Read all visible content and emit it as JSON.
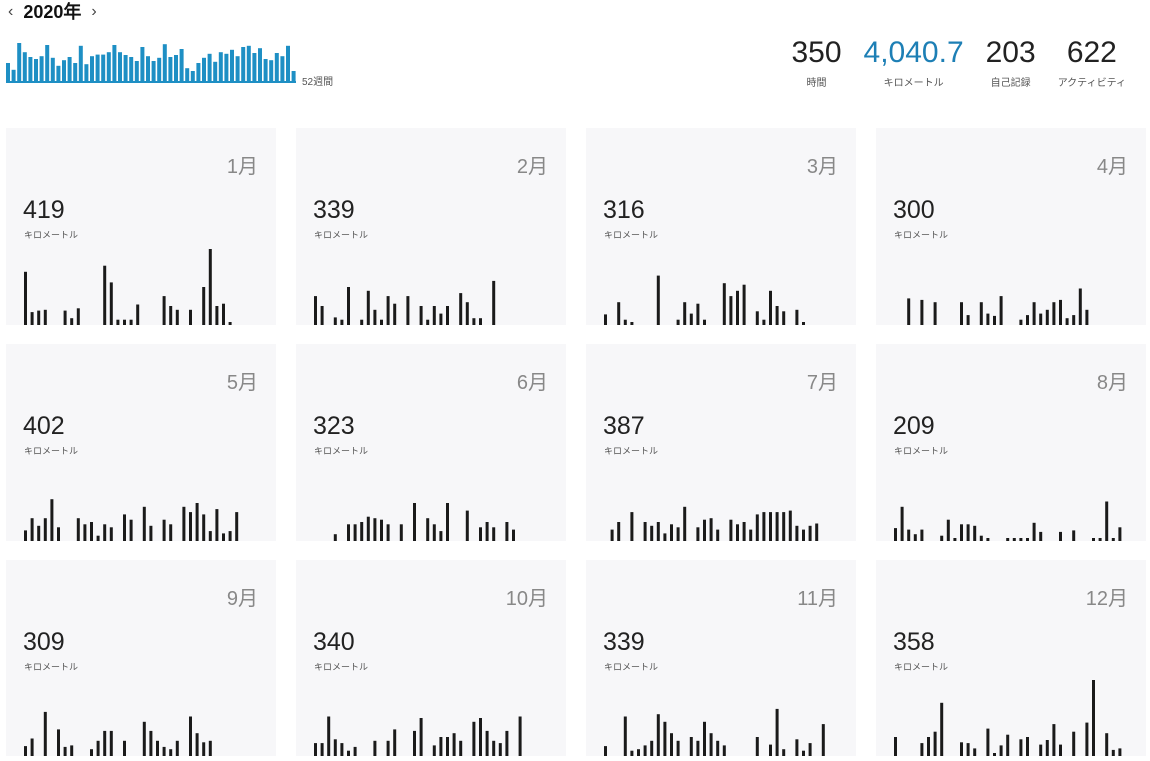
{
  "header": {
    "year_label": "2020年",
    "prev_icon": "chevron-left-icon",
    "next_icon": "chevron-right-icon",
    "weeks_label": "52週間"
  },
  "colors": {
    "accent": "#1d7fb5",
    "weekly_bar": "#1e8fc4",
    "daily_bar": "#1a1a1a",
    "card_bg": "#f7f7f9"
  },
  "weekly_bars": [
    0.45,
    0.28,
    0.95,
    0.72,
    0.6,
    0.55,
    0.62,
    0.9,
    0.58,
    0.38,
    0.52,
    0.6,
    0.45,
    0.88,
    0.42,
    0.62,
    0.66,
    0.66,
    0.72,
    0.9,
    0.72,
    0.65,
    0.6,
    0.5,
    0.85,
    0.62,
    0.5,
    0.58,
    0.92,
    0.6,
    0.65,
    0.8,
    0.32,
    0.25,
    0.45,
    0.58,
    0.68,
    0.48,
    0.72,
    0.68,
    0.78,
    0.62,
    0.85,
    0.88,
    0.7,
    0.82,
    0.55,
    0.52,
    0.7,
    0.62,
    0.88,
    0.25
  ],
  "totals": [
    {
      "value": "350",
      "unit": "時間",
      "accent": false
    },
    {
      "value": "4,040.7",
      "unit": "キロメートル",
      "accent": true
    },
    {
      "value": "203",
      "unit": "自己記録",
      "accent": false
    },
    {
      "value": "622",
      "unit": "アクティビティ",
      "accent": false
    }
  ],
  "months": [
    {
      "label": "1月",
      "distance": "419",
      "unit": "キロメートル",
      "days": [
        0.7,
        0.17,
        0.19,
        0.2,
        0,
        0,
        0.19,
        0.09,
        0.22,
        0,
        0,
        0,
        0.78,
        0.56,
        0.07,
        0.07,
        0.07,
        0.27,
        0,
        0,
        0,
        0.38,
        0.25,
        0.2,
        0,
        0.2,
        0,
        0.5,
        1.0,
        0.25,
        0.28,
        0.04
      ]
    },
    {
      "label": "2月",
      "distance": "339",
      "unit": "キロメートル",
      "days": [
        0.38,
        0.25,
        0,
        0.1,
        0.07,
        0.5,
        0,
        0.07,
        0.45,
        0.2,
        0.07,
        0.38,
        0.28,
        0,
        0.38,
        0,
        0.25,
        0.07,
        0.25,
        0.15,
        0.25,
        0,
        0.42,
        0.3,
        0.09,
        0.09,
        0,
        0.58
      ]
    },
    {
      "label": "3月",
      "distance": "316",
      "unit": "キロメートル",
      "days": [
        0.14,
        0,
        0.3,
        0.07,
        0.04,
        0,
        0,
        0,
        0.65,
        0,
        0,
        0.07,
        0.3,
        0.15,
        0.28,
        0.07,
        0,
        0,
        0.55,
        0.38,
        0.45,
        0.53,
        0,
        0.18,
        0.07,
        0.45,
        0.25,
        0.18,
        0,
        0.2,
        0.04
      ]
    },
    {
      "label": "4月",
      "distance": "300",
      "unit": "キロメートル",
      "days": [
        0,
        0,
        0.35,
        0,
        0.33,
        0,
        0.3,
        0,
        0,
        0,
        0.3,
        0.13,
        0,
        0.3,
        0.15,
        0.12,
        0.38,
        0,
        0,
        0.07,
        0.13,
        0.3,
        0.15,
        0.2,
        0.3,
        0.33,
        0.09,
        0.13,
        0.48,
        0.2
      ]
    },
    {
      "label": "5月",
      "distance": "402",
      "unit": "キロメートル",
      "days": [
        0.14,
        0.3,
        0.2,
        0.3,
        0.55,
        0.18,
        0,
        0,
        0.3,
        0.22,
        0.25,
        0.07,
        0.22,
        0.18,
        0,
        0.35,
        0.28,
        0,
        0.45,
        0.2,
        0,
        0.28,
        0.22,
        0,
        0.45,
        0.38,
        0.5,
        0.35,
        0.13,
        0.42,
        0.1,
        0.13,
        0.38
      ]
    },
    {
      "label": "6月",
      "distance": "323",
      "unit": "キロメートル",
      "days": [
        0,
        0,
        0,
        0.09,
        0,
        0.22,
        0.22,
        0.25,
        0.32,
        0.3,
        0.28,
        0.22,
        0,
        0.22,
        0,
        0.5,
        0,
        0.3,
        0.22,
        0.13,
        0.5,
        0,
        0,
        0.4,
        0,
        0.18,
        0.25,
        0.18,
        0,
        0.25,
        0.15
      ]
    },
    {
      "label": "7月",
      "distance": "387",
      "unit": "キロメートル",
      "days": [
        0,
        0.15,
        0.25,
        0,
        0.38,
        0,
        0.25,
        0.2,
        0.25,
        0.1,
        0.22,
        0.18,
        0.45,
        0,
        0.18,
        0.28,
        0.3,
        0.15,
        0,
        0.28,
        0.22,
        0.25,
        0.15,
        0.35,
        0.38,
        0.38,
        0.38,
        0.38,
        0.4,
        0.2,
        0.15,
        0.2,
        0.23
      ]
    },
    {
      "label": "8月",
      "distance": "209",
      "unit": "キロメートル",
      "days": [
        0.17,
        0.45,
        0.15,
        0.09,
        0.15,
        0,
        0,
        0.07,
        0.28,
        0.04,
        0.22,
        0.22,
        0.2,
        0.07,
        0.04,
        0,
        0,
        0.04,
        0.04,
        0.04,
        0.04,
        0.24,
        0.12,
        0,
        0,
        0.12,
        0,
        0.14,
        0,
        0,
        0.04,
        0.04,
        0.52,
        0.04,
        0.18
      ]
    },
    {
      "label": "9月",
      "distance": "309",
      "unit": "キロメートル",
      "days": [
        0.13,
        0.23,
        0,
        0.58,
        0,
        0.35,
        0.12,
        0.14,
        0,
        0,
        0.09,
        0.2,
        0.33,
        0.33,
        0,
        0.2,
        0,
        0,
        0.45,
        0.33,
        0.2,
        0.12,
        0.09,
        0.2,
        0,
        0.52,
        0.3,
        0.18,
        0.2
      ]
    },
    {
      "label": "10月",
      "distance": "340",
      "unit": "キロメートル",
      "days": [
        0.17,
        0.17,
        0.52,
        0.22,
        0.17,
        0.07,
        0.12,
        0,
        0,
        0.2,
        0,
        0.2,
        0.35,
        0,
        0,
        0.33,
        0.5,
        0,
        0.14,
        0.25,
        0.25,
        0.3,
        0.2,
        0,
        0.45,
        0.5,
        0.33,
        0.2,
        0.17,
        0.33,
        0,
        0.52
      ]
    },
    {
      "label": "11月",
      "distance": "339",
      "unit": "キロメートル",
      "days": [
        0.13,
        0,
        0,
        0.52,
        0.07,
        0.09,
        0.14,
        0.2,
        0.55,
        0.45,
        0.3,
        0.2,
        0,
        0.25,
        0.2,
        0.45,
        0.3,
        0.2,
        0.14,
        0,
        0,
        0,
        0,
        0.25,
        0,
        0.15,
        0.62,
        0.09,
        0,
        0.22,
        0.07,
        0.17,
        0,
        0.42
      ]
    },
    {
      "label": "12月",
      "distance": "358",
      "unit": "キロメートル",
      "days": [
        0.25,
        0,
        0,
        0,
        0.17,
        0.25,
        0.32,
        0.7,
        0,
        0,
        0.18,
        0.17,
        0.1,
        0,
        0.36,
        0.04,
        0.14,
        0.28,
        0,
        0.22,
        0.25,
        0,
        0.15,
        0.21,
        0.42,
        0.15,
        0,
        0.32,
        0,
        0.44,
        1.0,
        0,
        0.3,
        0.08,
        0.1
      ]
    }
  ]
}
